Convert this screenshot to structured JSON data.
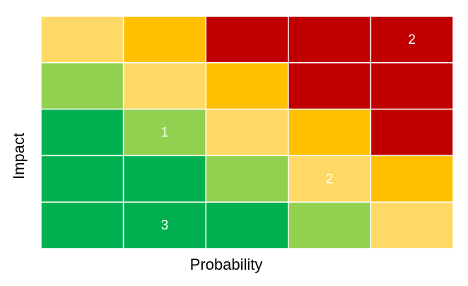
{
  "chart_data": {
    "type": "heatmap",
    "xlabel": "Probability",
    "ylabel": "Impact",
    "values": [
      [
        null,
        null,
        null,
        null,
        2
      ],
      [
        null,
        null,
        null,
        null,
        null
      ],
      [
        null,
        1,
        null,
        null,
        null
      ],
      [
        null,
        null,
        null,
        2,
        null
      ],
      [
        null,
        3,
        null,
        null,
        null
      ]
    ],
    "colors": [
      [
        "#FFD966",
        "#FFC000",
        "#C00000",
        "#C00000",
        "#C00000"
      ],
      [
        "#92D050",
        "#FFD966",
        "#FFC000",
        "#C00000",
        "#C00000"
      ],
      [
        "#00B050",
        "#92D050",
        "#FFD966",
        "#FFC000",
        "#C00000"
      ],
      [
        "#00B050",
        "#00B050",
        "#92D050",
        "#FFD966",
        "#FFC000"
      ],
      [
        "#00B050",
        "#00B050",
        "#00B050",
        "#92D050",
        "#FFD966"
      ]
    ]
  }
}
